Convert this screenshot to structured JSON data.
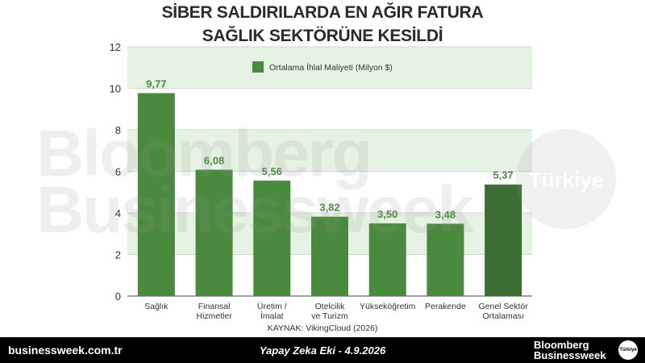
{
  "header": {
    "title_line1": "SİBER SALDIRILARDA EN AĞIR FATURA",
    "title_line2": "SAĞLIK SEKTÖRÜNE KESİLDİ"
  },
  "chart_data": {
    "type": "bar",
    "title": "SİBER SALDIRILARDA EN AĞIR FATURA SAĞLIK SEKTÖRÜNE KESİLDİ",
    "categories": [
      [
        "Sağlık"
      ],
      [
        "Finansal",
        "Hizmetler"
      ],
      [
        "Üretim /",
        "İmalat"
      ],
      [
        "Otelcilik",
        "ve Turizm"
      ],
      [
        "Yükseköğretim"
      ],
      [
        "Perakende"
      ],
      [
        "Genel Sektör",
        "Ortalaması"
      ]
    ],
    "series": [
      {
        "name": "Ortalama İhlal Maliyeti (Milyon $)",
        "values": [
          9.77,
          6.08,
          5.56,
          3.82,
          3.5,
          3.48,
          5.37
        ],
        "labels": [
          "9,77",
          "6,08",
          "5,56",
          "3,82",
          "3,50",
          "3,48",
          "5,37"
        ]
      }
    ],
    "yticks": [
      "0",
      "2",
      "4",
      "6",
      "8",
      "10",
      "12"
    ],
    "ylim": [
      0,
      12
    ],
    "legend_position": "top",
    "grid": true,
    "colors": {
      "bar": "#4a8a3e",
      "bar_highlight": "#3c6e33",
      "value_label": "#4a8a3e",
      "band": "#e6f2e3"
    }
  },
  "source": "KAYNAK: VikingCloud (2026)",
  "watermark": {
    "line1": "Bloomberg",
    "line2": "Businessweek",
    "badge": "Türkiye"
  },
  "footer": {
    "site": "businessweek.com.tr",
    "note": "Yapay Zeka Eki - 4.9.2026",
    "brand_line1": "Bloomberg",
    "brand_line2": "Businessweek",
    "badge": "Türkiye"
  }
}
